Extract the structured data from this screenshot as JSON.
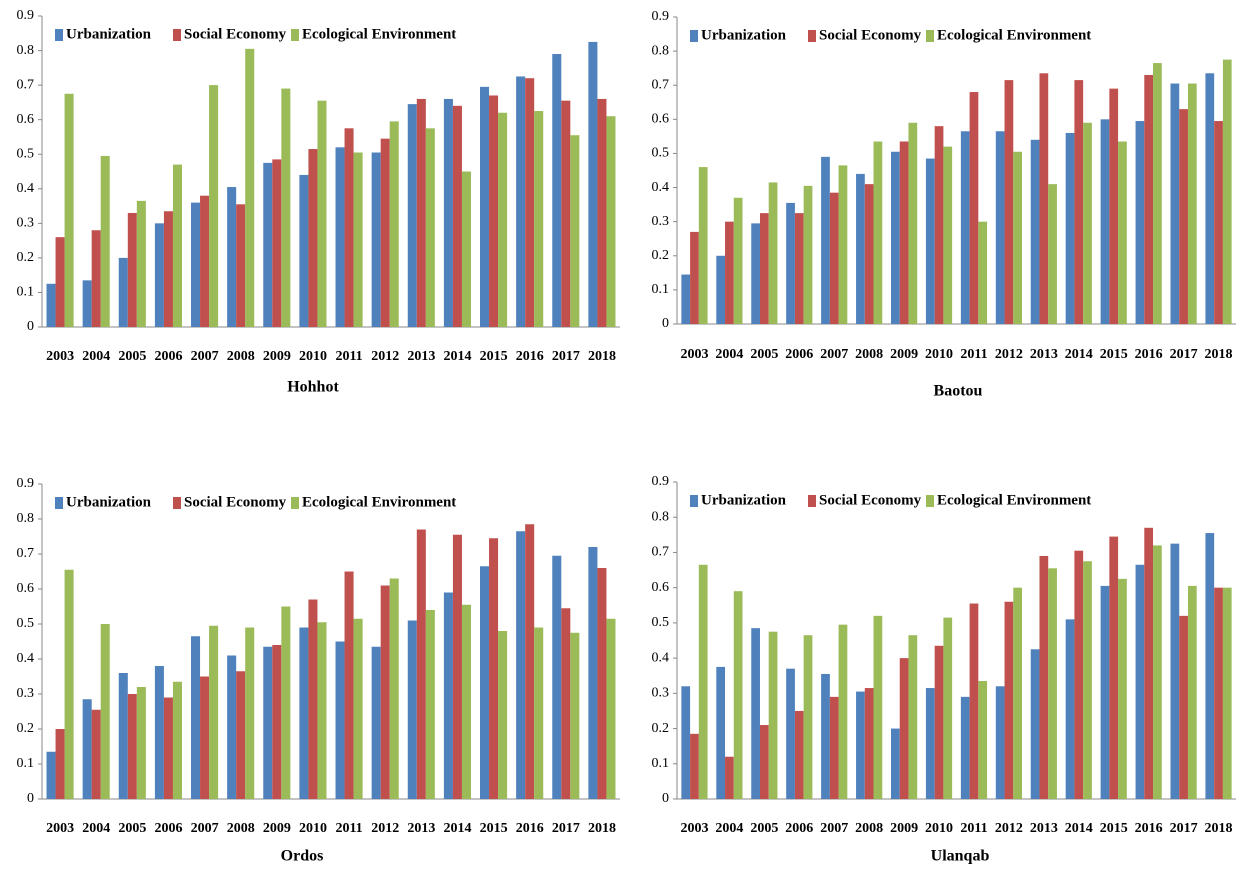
{
  "chart_data": [
    {
      "type": "bar",
      "title": "Hohhot",
      "categories": [
        "2003",
        "2004",
        "2005",
        "2006",
        "2007",
        "2008",
        "2009",
        "2010",
        "2011",
        "2012",
        "2013",
        "2014",
        "2015",
        "2016",
        "2017",
        "2018"
      ],
      "series": [
        {
          "name": "Urbanization",
          "color": "#4f81bd",
          "values": [
            0.125,
            0.135,
            0.2,
            0.3,
            0.36,
            0.405,
            0.475,
            0.44,
            0.52,
            0.505,
            0.645,
            0.66,
            0.695,
            0.725,
            0.79,
            0.825
          ]
        },
        {
          "name": "Social Economy",
          "color": "#c0504d",
          "values": [
            0.26,
            0.28,
            0.33,
            0.335,
            0.38,
            0.355,
            0.485,
            0.515,
            0.575,
            0.545,
            0.66,
            0.64,
            0.67,
            0.72,
            0.655,
            0.66
          ]
        },
        {
          "name": "Ecological Environment",
          "color": "#9bbb59",
          "values": [
            0.675,
            0.495,
            0.365,
            0.47,
            0.7,
            0.805,
            0.69,
            0.655,
            0.505,
            0.595,
            0.575,
            0.45,
            0.62,
            0.625,
            0.555,
            0.61
          ]
        }
      ],
      "ylim": [
        0,
        0.9
      ],
      "yticks": [
        0,
        0.1,
        0.2,
        0.3,
        0.4,
        0.5,
        0.6,
        0.7,
        0.8,
        0.9
      ],
      "legend": "upper left"
    },
    {
      "type": "bar",
      "title": "Baotou",
      "categories": [
        "2003",
        "2004",
        "2005",
        "2006",
        "2007",
        "2008",
        "2009",
        "2010",
        "2011",
        "2012",
        "2013",
        "2014",
        "2015",
        "2016",
        "2017",
        "2018"
      ],
      "series": [
        {
          "name": "Urbanization",
          "color": "#4f81bd",
          "values": [
            0.145,
            0.2,
            0.295,
            0.355,
            0.49,
            0.44,
            0.505,
            0.485,
            0.565,
            0.565,
            0.54,
            0.56,
            0.6,
            0.595,
            0.705,
            0.735
          ]
        },
        {
          "name": "Social Economy",
          "color": "#c0504d",
          "values": [
            0.27,
            0.3,
            0.325,
            0.325,
            0.385,
            0.41,
            0.535,
            0.58,
            0.68,
            0.715,
            0.735,
            0.715,
            0.69,
            0.73,
            0.63,
            0.595
          ]
        },
        {
          "name": "Ecological Environment",
          "color": "#9bbb59",
          "values": [
            0.46,
            0.37,
            0.415,
            0.405,
            0.465,
            0.535,
            0.59,
            0.52,
            0.3,
            0.505,
            0.41,
            0.59,
            0.535,
            0.765,
            0.705,
            0.775
          ]
        }
      ],
      "ylim": [
        0,
        0.9
      ],
      "yticks": [
        0,
        0.1,
        0.2,
        0.3,
        0.4,
        0.5,
        0.6,
        0.7,
        0.8,
        0.9
      ],
      "legend": "upper left"
    },
    {
      "type": "bar",
      "title": "Ordos",
      "categories": [
        "2003",
        "2004",
        "2005",
        "2006",
        "2007",
        "2008",
        "2009",
        "2010",
        "2011",
        "2012",
        "2013",
        "2014",
        "2015",
        "2016",
        "2017",
        "2018"
      ],
      "series": [
        {
          "name": "Urbanization",
          "color": "#4f81bd",
          "values": [
            0.135,
            0.285,
            0.36,
            0.38,
            0.465,
            0.41,
            0.435,
            0.49,
            0.45,
            0.435,
            0.51,
            0.59,
            0.665,
            0.765,
            0.695,
            0.72
          ]
        },
        {
          "name": "Social Economy",
          "color": "#c0504d",
          "values": [
            0.2,
            0.255,
            0.3,
            0.29,
            0.35,
            0.365,
            0.44,
            0.57,
            0.65,
            0.61,
            0.77,
            0.755,
            0.745,
            0.785,
            0.545,
            0.66
          ]
        },
        {
          "name": "Ecological Environment",
          "color": "#9bbb59",
          "values": [
            0.655,
            0.5,
            0.32,
            0.335,
            0.495,
            0.49,
            0.55,
            0.505,
            0.515,
            0.63,
            0.54,
            0.555,
            0.48,
            0.49,
            0.475,
            0.515
          ]
        }
      ],
      "ylim": [
        0,
        0.9
      ],
      "yticks": [
        0,
        0.1,
        0.2,
        0.3,
        0.4,
        0.5,
        0.6,
        0.7,
        0.8,
        0.9
      ],
      "legend": "upper left"
    },
    {
      "type": "bar",
      "title": "Ulanqab",
      "categories": [
        "2003",
        "2004",
        "2005",
        "2006",
        "2007",
        "2008",
        "2009",
        "2010",
        "2011",
        "2012",
        "2013",
        "2014",
        "2015",
        "2016",
        "2017",
        "2018"
      ],
      "series": [
        {
          "name": "Urbanization",
          "color": "#4f81bd",
          "values": [
            0.32,
            0.375,
            0.485,
            0.37,
            0.355,
            0.305,
            0.2,
            0.315,
            0.29,
            0.32,
            0.425,
            0.51,
            0.605,
            0.665,
            0.725,
            0.755
          ]
        },
        {
          "name": "Social Economy",
          "color": "#c0504d",
          "values": [
            0.185,
            0.12,
            0.21,
            0.25,
            0.29,
            0.315,
            0.4,
            0.435,
            0.555,
            0.56,
            0.69,
            0.705,
            0.745,
            0.77,
            0.52,
            0.6
          ]
        },
        {
          "name": "Ecological Environment",
          "color": "#9bbb59",
          "values": [
            0.665,
            0.59,
            0.475,
            0.465,
            0.495,
            0.52,
            0.465,
            0.515,
            0.335,
            0.6,
            0.655,
            0.675,
            0.625,
            0.72,
            0.605,
            0.6
          ]
        }
      ],
      "ylim": [
        0,
        0.9
      ],
      "yticks": [
        0,
        0.1,
        0.2,
        0.3,
        0.4,
        0.5,
        0.6,
        0.7,
        0.8,
        0.9
      ],
      "legend": "upper left"
    }
  ]
}
